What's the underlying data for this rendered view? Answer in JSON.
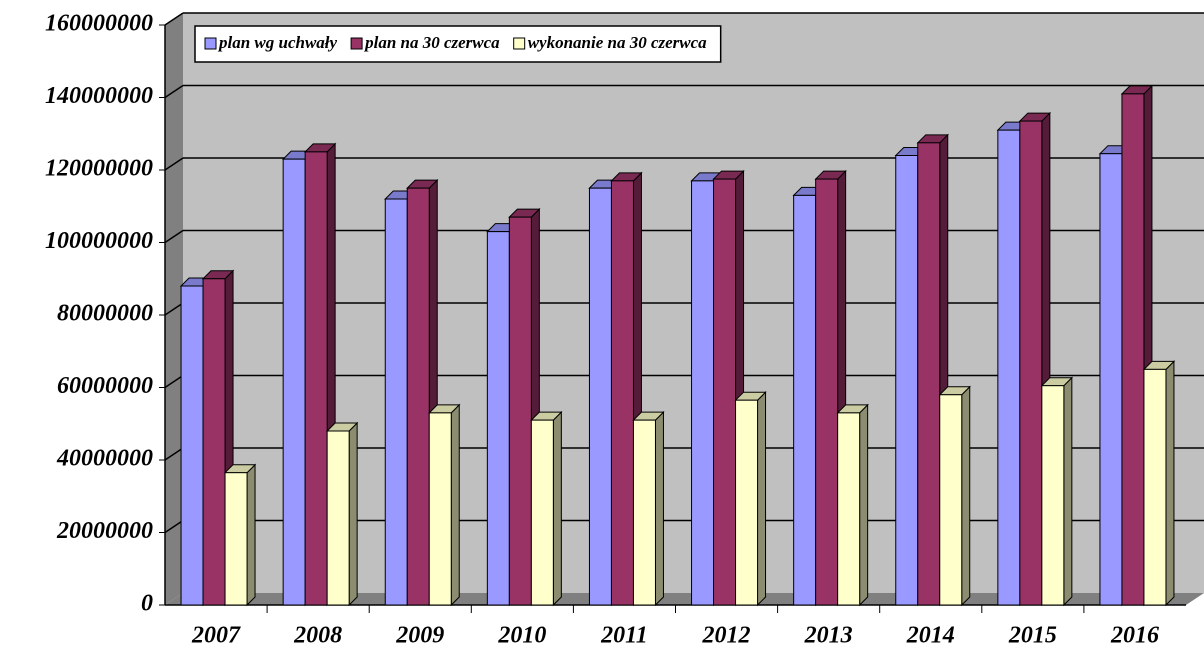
{
  "chart_data": {
    "type": "bar3d",
    "categories": [
      "2007",
      "2008",
      "2009",
      "2010",
      "2011",
      "2012",
      "2013",
      "2014",
      "2015",
      "2016"
    ],
    "series": [
      {
        "name": "plan wg uchwały",
        "color": "#9999ff",
        "values": [
          88000000,
          123000000,
          112000000,
          103000000,
          115000000,
          117000000,
          113000000,
          124000000,
          131000000,
          124500000
        ]
      },
      {
        "name": "plan na 30 czerwca",
        "color": "#993366",
        "values": [
          90000000,
          125000000,
          115000000,
          107000000,
          117000000,
          117500000,
          117500000,
          127500000,
          133500000,
          141000000
        ]
      },
      {
        "name": "wykonanie na 30 czerwca",
        "color": "#ffffcc",
        "values": [
          36500000,
          48000000,
          53000000,
          51000000,
          51000000,
          56500000,
          53000000,
          58000000,
          60500000,
          65000000
        ]
      }
    ],
    "ylim": [
      0,
      160000000
    ],
    "yticks": [
      0,
      20000000,
      40000000,
      60000000,
      80000000,
      100000000,
      120000000,
      140000000,
      160000000
    ],
    "grid": true
  }
}
